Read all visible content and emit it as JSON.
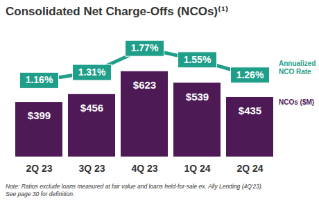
{
  "chart_data": {
    "type": "bar",
    "title": "Consolidated Net Charge-Offs (NCOs)⁽¹⁾",
    "note": "Note: Ratios exclude loans measured at fair value and loans held-for-sale ex. Ally Lending (4Q'23).\nSee page 30 for definition.",
    "categories": [
      "2Q 23",
      "3Q 23",
      "4Q 23",
      "1Q 24",
      "2Q 24"
    ],
    "series": [
      {
        "name": "NCOs ($M)",
        "type": "bar",
        "color": "#4e1a56",
        "values": [
          399,
          456,
          623,
          539,
          435
        ],
        "value_labels": [
          "$399",
          "$456",
          "$623",
          "$539",
          "$435"
        ]
      },
      {
        "name": "Annualized NCO Rate",
        "type": "line",
        "axis": "y2",
        "color": "#1f9e8a",
        "marker": "square",
        "values": [
          1.16,
          1.31,
          1.77,
          1.55,
          1.26
        ],
        "value_labels": [
          "1.16%",
          "1.31%",
          "1.77%",
          "1.55%",
          "1.26%"
        ]
      }
    ],
    "ylim": [
      0,
      900
    ],
    "y2lim": [
      -0.3,
      2.05
    ],
    "data_labels": true,
    "tick_labels": "x",
    "legend": "right"
  }
}
